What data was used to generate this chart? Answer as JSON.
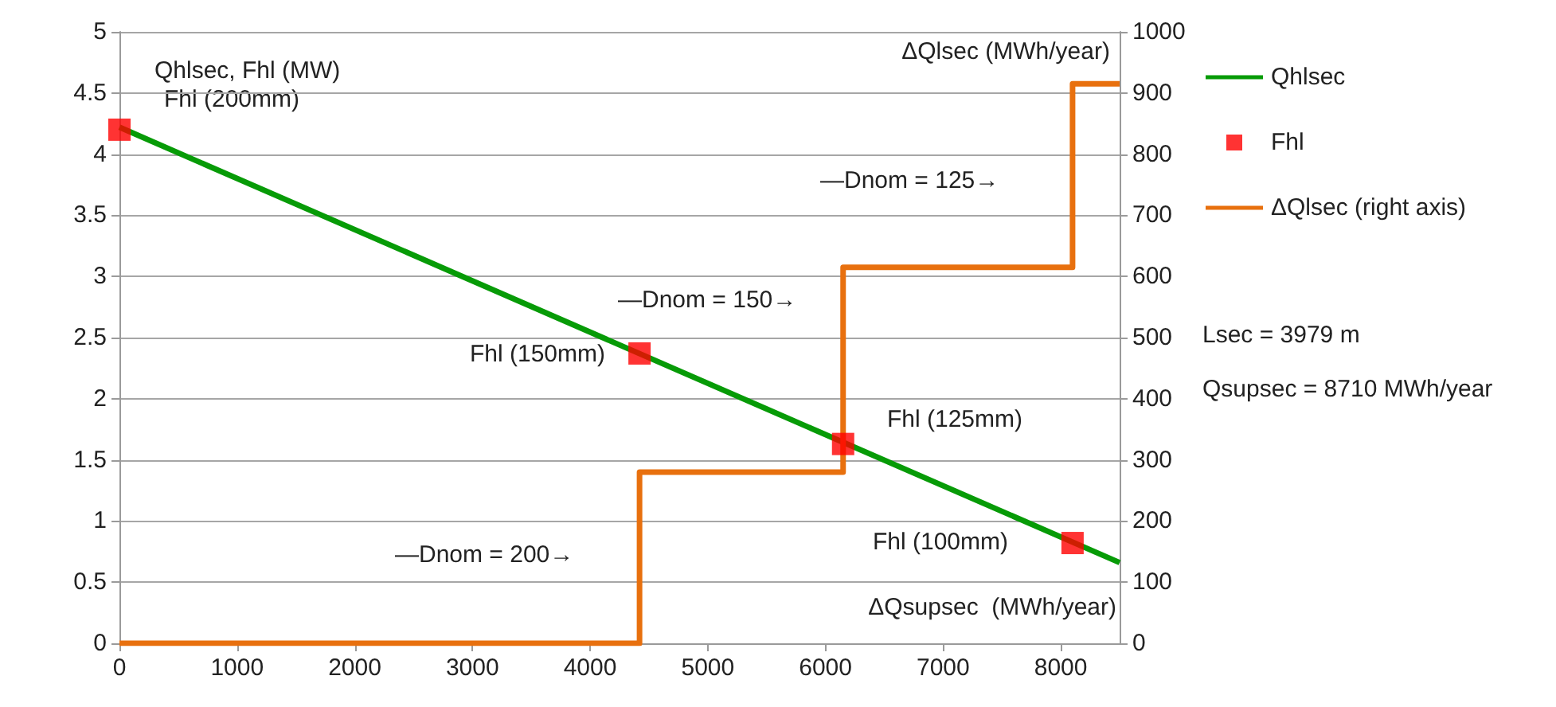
{
  "chart_data": {
    "type": "line",
    "ylabel": "Qhlsec, Fhl (MW)",
    "y2label": "ΔQlsec (MWh/year)",
    "xlim": [
      0,
      8500
    ],
    "xticks": [
      0,
      1000,
      2000,
      3000,
      4000,
      5000,
      6000,
      7000,
      8000
    ],
    "ylim": [
      0,
      5
    ],
    "yticks": [
      0,
      0.5,
      1,
      1.5,
      2,
      2.5,
      3,
      3.5,
      4,
      4.5,
      5
    ],
    "y2lim": [
      0,
      1000
    ],
    "y2ticks": [
      0,
      100,
      200,
      300,
      400,
      500,
      600,
      700,
      800,
      900,
      1000
    ],
    "grid": "y",
    "legend": "right",
    "series": [
      {
        "name": "Qhlsec",
        "type": "line",
        "color": "#079b07",
        "marker": "none",
        "x": [
          0,
          8500
        ],
        "values": [
          4.22,
          0.66
        ]
      },
      {
        "name": "Fhl",
        "type": "scatter",
        "color": "#ff0000",
        "marker": "square",
        "x": [
          0,
          4420,
          6150,
          8100
        ],
        "values": [
          4.2,
          2.37,
          1.63,
          0.82
        ]
      },
      {
        "name": "ΔQlsec (right axis)",
        "type": "step",
        "axis": "y2",
        "color": "#e8700e",
        "marker": "none",
        "x": [
          0,
          4420,
          6150,
          8100,
          8500
        ],
        "values": [
          0,
          280,
          615,
          915,
          915
        ]
      }
    ],
    "annotations": [
      "ΔQsupsec  (MWh/year)",
      "Lsec = 3979 m",
      "Qsupsec = 8710 MWh/year",
      "Fhl (200mm)",
      "Fhl (150mm)",
      "Fhl (125mm)",
      "Fhl (100mm)",
      "—Dnom = 200→",
      "—Dnom = 150→",
      "—Dnom = 125→"
    ]
  }
}
